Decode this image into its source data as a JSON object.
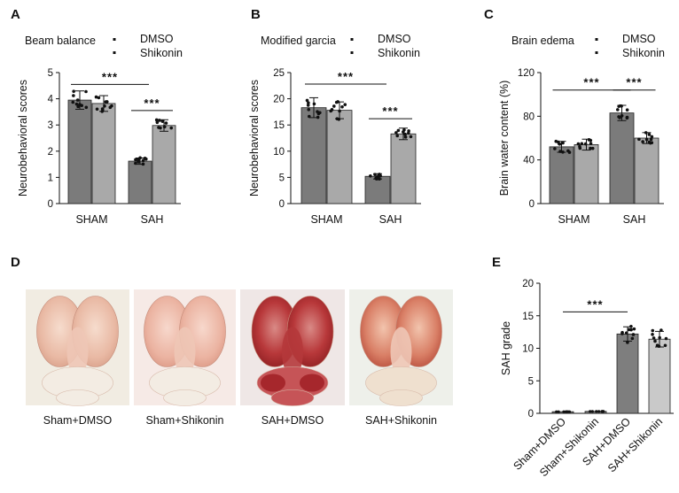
{
  "panels": {
    "a": "A",
    "b": "B",
    "c": "C",
    "d": "D",
    "e": "E"
  },
  "colors": {
    "dmso": "#7b7b7b",
    "shikonin": "#a9a9a9",
    "e_bars": [
      "#6e6e6e",
      "#7b7b7b",
      "#7e7e7e",
      "#c9c9c9"
    ]
  },
  "photos": {
    "captions": [
      "Sham+DMSO",
      "Sham+Shikonin",
      "SAH+DMSO",
      "SAH+Shikonin"
    ],
    "tints": [
      "#f1ece2",
      "#f6eae6",
      "#efe7e6",
      "#eef0ea"
    ]
  },
  "chart_data": [
    {
      "id": "A",
      "type": "bar",
      "title": "Beam balance",
      "ylabel": "Neurobehavioral scores",
      "categories": [
        "SHAM",
        "SAH"
      ],
      "ylim": [
        0,
        5
      ],
      "yticks": [
        "0",
        "1",
        "2",
        "3",
        "4",
        "5"
      ],
      "series": [
        {
          "name": "DMSO",
          "values": [
            3.95,
            1.62
          ],
          "errors": [
            0.35,
            0.12
          ]
        },
        {
          "name": "Shikonin",
          "values": [
            3.82,
            2.98
          ],
          "errors": [
            0.3,
            0.22
          ]
        }
      ],
      "significance": [
        {
          "label": "***",
          "from": [
            0,
            0
          ],
          "to": [
            1,
            0
          ],
          "y": 4.55
        },
        {
          "label": "***",
          "from": [
            1,
            0
          ],
          "to": [
            1,
            1
          ],
          "y": 3.55
        }
      ]
    },
    {
      "id": "B",
      "type": "bar",
      "title": "Modified garcia",
      "ylabel": "Neurobehavioral scores",
      "categories": [
        "SHAM",
        "SAH"
      ],
      "ylim": [
        0,
        25
      ],
      "yticks": [
        "0",
        "5",
        "10",
        "15",
        "20",
        "25"
      ],
      "series": [
        {
          "name": "DMSO",
          "values": [
            18.3,
            5.2
          ],
          "errors": [
            1.9,
            0.5
          ]
        },
        {
          "name": "Shikonin",
          "values": [
            17.8,
            13.3
          ],
          "errors": [
            1.6,
            1.1
          ]
        }
      ],
      "significance": [
        {
          "label": "***",
          "from": [
            0,
            0
          ],
          "to": [
            1,
            0
          ],
          "y": 22.8
        },
        {
          "label": "***",
          "from": [
            1,
            0
          ],
          "to": [
            1,
            1
          ],
          "y": 16.2
        }
      ]
    },
    {
      "id": "C",
      "type": "bar",
      "title": "Brain edema",
      "ylabel": "Brain water content (%)",
      "categories": [
        "SHAM",
        "SAH"
      ],
      "ylim": [
        0,
        120
      ],
      "yticks": [
        "0",
        "40",
        "80",
        "120"
      ],
      "series": [
        {
          "name": "DMSO",
          "values": [
            52,
            83
          ],
          "errors": [
            5,
            7
          ]
        },
        {
          "name": "Shikonin",
          "values": [
            54,
            60
          ],
          "errors": [
            5,
            5
          ]
        }
      ],
      "significance": [
        {
          "label": "***",
          "from": [
            0,
            0
          ],
          "to": [
            1,
            0
          ],
          "y": 104
        },
        {
          "label": "***",
          "from": [
            1,
            0
          ],
          "to": [
            1,
            1
          ],
          "y": 104
        }
      ]
    },
    {
      "id": "E",
      "type": "bar",
      "title": "",
      "ylabel": "SAH grade",
      "categories": [
        "Sham+DMSO",
        "Sham+Shikonin",
        "SAH+DMSO",
        "SAH+Shikonin"
      ],
      "ylim": [
        0,
        20
      ],
      "yticks": [
        "0",
        "5",
        "10",
        "15",
        "20"
      ],
      "values": [
        0.25,
        0.3,
        12.2,
        11.4
      ],
      "errors": [
        0,
        0,
        1.1,
        1.2
      ],
      "significance": [
        {
          "label": "***",
          "from": 0,
          "to": 2,
          "y": 15.6
        }
      ]
    }
  ]
}
